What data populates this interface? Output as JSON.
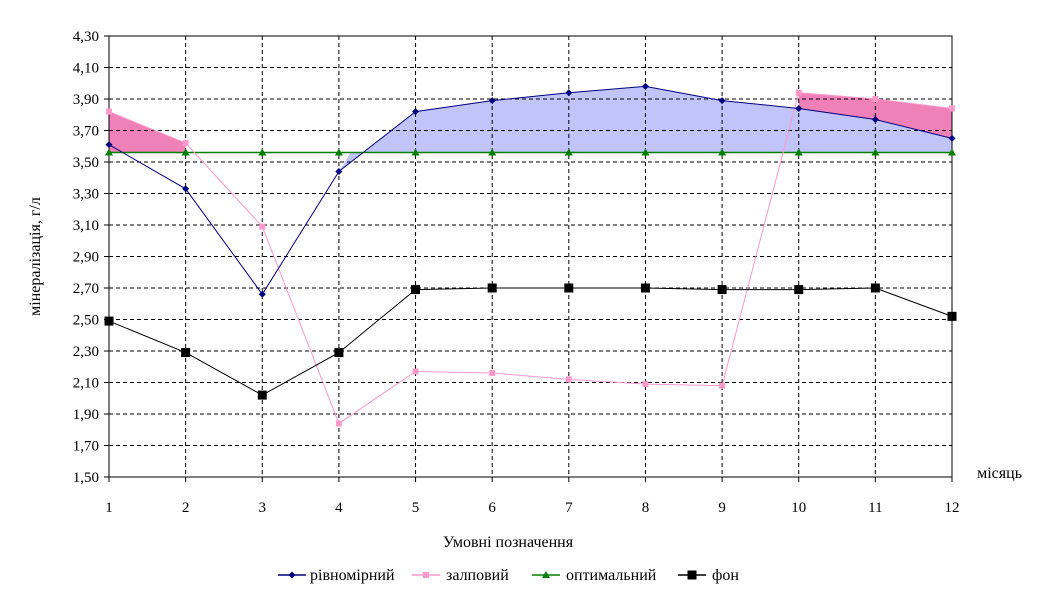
{
  "chart_data": {
    "type": "line",
    "xlabel": "Умовні позначення",
    "x_unit_label": "місяць",
    "ylabel": "мінералізація, г/л",
    "x": [
      1,
      2,
      3,
      4,
      5,
      6,
      7,
      8,
      9,
      10,
      11,
      12
    ],
    "x_tick_labels": [
      "1",
      "2",
      "3",
      "4",
      "5",
      "6",
      "7",
      "8",
      "9",
      "10",
      "11",
      "12"
    ],
    "ylim": [
      1.5,
      4.3
    ],
    "y_ticks": [
      1.5,
      1.7,
      1.9,
      2.1,
      2.3,
      2.5,
      2.7,
      2.9,
      3.1,
      3.3,
      3.5,
      3.7,
      3.9,
      4.1,
      4.3
    ],
    "y_tick_labels": [
      "1,50",
      "1,70",
      "1,90",
      "2,10",
      "2,30",
      "2,50",
      "2,70",
      "2,90",
      "3,10",
      "3,30",
      "3,50",
      "3,70",
      "3,90",
      "4,10",
      "4,30"
    ],
    "grid": true,
    "legend_position": "bottom",
    "series": [
      {
        "name": "рівномірний",
        "color": "#000080",
        "marker": "diamond",
        "values": [
          3.61,
          3.33,
          2.66,
          3.44,
          3.82,
          3.89,
          3.94,
          3.98,
          3.89,
          3.84,
          3.77,
          3.65
        ]
      },
      {
        "name": "залповий",
        "color": "#ff99cc",
        "marker": "square",
        "values": [
          3.82,
          3.62,
          3.09,
          1.84,
          2.17,
          2.16,
          2.12,
          2.09,
          2.08,
          3.94,
          3.9,
          3.84
        ]
      },
      {
        "name": "оптимальний",
        "color": "#008000",
        "marker": "triangle",
        "values": [
          3.56,
          3.56,
          3.56,
          3.56,
          3.56,
          3.56,
          3.56,
          3.56,
          3.56,
          3.56,
          3.56,
          3.56
        ]
      },
      {
        "name": "фон",
        "color": "#000000",
        "marker": "square-large",
        "values": [
          2.49,
          2.29,
          2.02,
          2.29,
          2.69,
          2.7,
          2.7,
          2.7,
          2.69,
          2.69,
          2.7,
          2.52
        ]
      }
    ],
    "fills": {
      "above_optimal_uniform_color": "#c0c4f8",
      "above_optimal_burst_color": "#f080b8"
    }
  }
}
